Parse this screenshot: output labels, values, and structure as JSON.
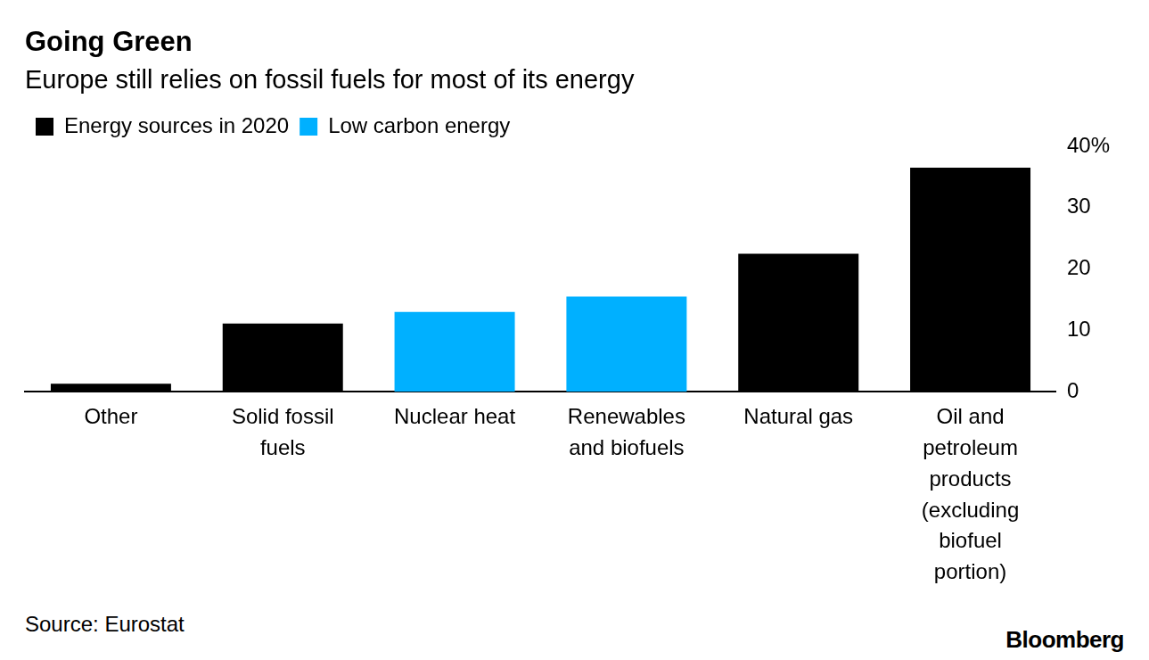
{
  "chart_data": {
    "type": "bar",
    "title": "Going Green",
    "subtitle": "Europe still relies on fossil fuels for most of its energy",
    "source": "Source: Eurostat",
    "credit": "Bloomberg",
    "categories": [
      "Other",
      "Solid fossil fuels",
      "Nuclear heat",
      "Renewables and biofuels",
      "Natural gas",
      "Oil and petroleum products (excluding biofuel portion)"
    ],
    "series": [
      {
        "name": "Energy sources in 2020",
        "color": "#000000",
        "values": [
          1.3,
          11.1,
          null,
          null,
          22.5,
          36.5
        ]
      },
      {
        "name": "Low carbon energy",
        "color": "#00b0ff",
        "values": [
          null,
          null,
          13.0,
          15.5,
          null,
          null
        ]
      }
    ],
    "ylim": [
      0,
      40
    ],
    "yticks": [
      0,
      10,
      20,
      30,
      {
        "value": 40,
        "label": "40%"
      }
    ],
    "grid": false,
    "legend": "top-left",
    "stacked": true
  }
}
